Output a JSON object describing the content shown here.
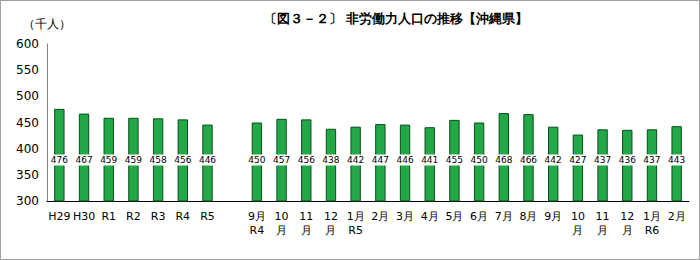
{
  "chart_data": {
    "type": "bar",
    "title": "〔図３－２〕 非労働力人口の推移【沖縄県】",
    "y_label": "（千人）",
    "categories": [
      "H29",
      "H30",
      "R1",
      "R2",
      "R3",
      "R4",
      "R5",
      null,
      "9月\nR4",
      "10\n月",
      "11\n月",
      "12\n月",
      "1月\nR5",
      "2月",
      "3月",
      "4月",
      "5月",
      "6月",
      "7月",
      "8月",
      "9月",
      "10\n月",
      "11\n月",
      "12\n月",
      "1月\nR6",
      "2月"
    ],
    "values": [
      476,
      467,
      459,
      459,
      458,
      456,
      446,
      null,
      450,
      457,
      456,
      438,
      442,
      447,
      446,
      441,
      455,
      450,
      468,
      466,
      442,
      427,
      437,
      436,
      437,
      443
    ],
    "color": "#22a846",
    "ylim": [
      300,
      600
    ],
    "yticks": [
      300,
      350,
      400,
      450,
      500,
      550,
      600
    ],
    "grid": false,
    "data_labels": true
  }
}
